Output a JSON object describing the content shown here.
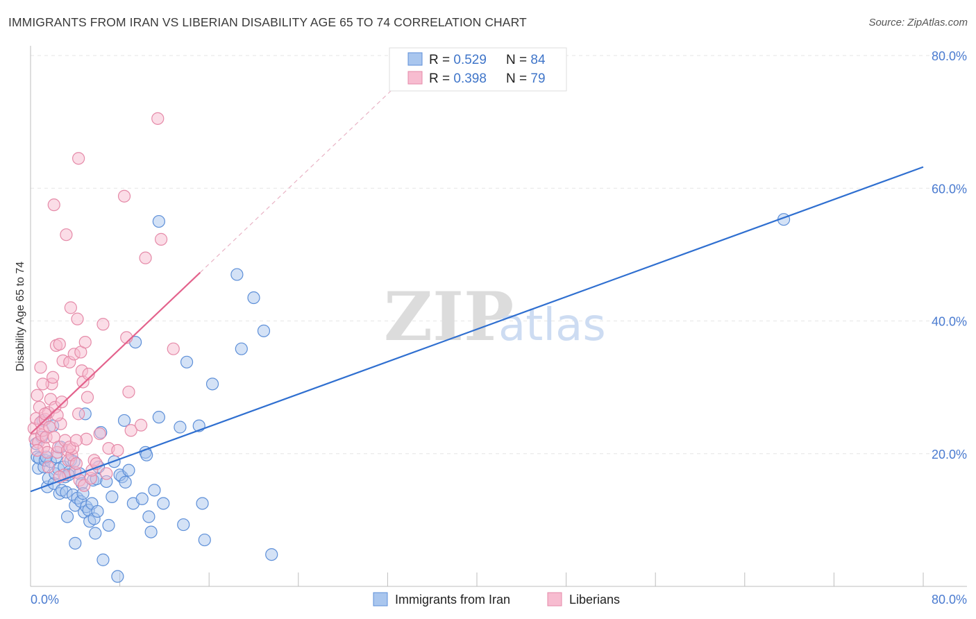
{
  "title": "IMMIGRANTS FROM IRAN VS LIBERIAN DISABILITY AGE 65 TO 74 CORRELATION CHART",
  "source": "Source: ZipAtlas.com",
  "watermark": {
    "part1": "ZIP",
    "part2": "atlas"
  },
  "legend_top": [
    {
      "r_label": "R = ",
      "r_value": "0.529",
      "n_label": "N = ",
      "n_value": "84"
    },
    {
      "r_label": "R = ",
      "r_value": "0.398",
      "n_label": "N = ",
      "n_value": "79"
    }
  ],
  "colors": {
    "blue_fill": "#a9c6ee",
    "blue_stroke": "#5d8fd8",
    "blue_line": "#2f6fd0",
    "pink_fill": "#f7bcd0",
    "pink_stroke": "#e58aa8",
    "pink_line": "#e3628c",
    "grid": "#e6e6e6",
    "axis": "#bdbdbd"
  },
  "chart_data": {
    "type": "scatter",
    "title": "IMMIGRANTS FROM IRAN VS LIBERIAN DISABILITY AGE 65 TO 74 CORRELATION CHART",
    "xlabel": "",
    "ylabel": "Disability Age 65 to 74",
    "xlim": [
      0,
      80
    ],
    "ylim": [
      0,
      80
    ],
    "x_tick_labels": [
      "0.0%",
      "80.0%"
    ],
    "y_tick_labels": [
      "20.0%",
      "40.0%",
      "60.0%",
      "80.0%"
    ],
    "y_ticks": [
      20,
      40,
      60,
      80
    ],
    "series": [
      {
        "name": "Immigrants from Iran",
        "color": "blue",
        "trend": {
          "x0": 0,
          "y0": 14.3,
          "x1": 80,
          "y1": 63.2,
          "dashed_until": null
        },
        "points": [
          [
            0.5,
            21.5
          ],
          [
            0.6,
            19.5
          ],
          [
            0.7,
            17.8
          ],
          [
            0.8,
            19.3
          ],
          [
            1.0,
            22.5
          ],
          [
            1.1,
            25.0
          ],
          [
            1.2,
            18.0
          ],
          [
            1.3,
            19.0
          ],
          [
            1.5,
            15.0
          ],
          [
            1.6,
            16.3
          ],
          [
            1.8,
            18.8
          ],
          [
            2.0,
            24.2
          ],
          [
            2.1,
            15.5
          ],
          [
            2.2,
            17.0
          ],
          [
            2.3,
            19.5
          ],
          [
            2.5,
            17.7
          ],
          [
            2.6,
            14.0
          ],
          [
            2.8,
            14.5
          ],
          [
            3.0,
            18.0
          ],
          [
            3.1,
            16.5
          ],
          [
            3.2,
            14.2
          ],
          [
            3.3,
            10.5
          ],
          [
            3.5,
            17.3
          ],
          [
            3.6,
            19.0
          ],
          [
            3.8,
            13.8
          ],
          [
            3.9,
            18.8
          ],
          [
            4.0,
            12.2
          ],
          [
            4.2,
            13.3
          ],
          [
            4.4,
            17.0
          ],
          [
            4.5,
            12.8
          ],
          [
            4.6,
            15.5
          ],
          [
            4.8,
            11.2
          ],
          [
            4.9,
            26.0
          ],
          [
            5.0,
            12.0
          ],
          [
            5.2,
            11.5
          ],
          [
            5.3,
            9.8
          ],
          [
            5.5,
            12.5
          ],
          [
            5.6,
            16.0
          ],
          [
            5.7,
            10.2
          ],
          [
            5.8,
            8.0
          ],
          [
            5.9,
            16.2
          ],
          [
            6.0,
            11.3
          ],
          [
            6.1,
            18.0
          ],
          [
            6.3,
            23.2
          ],
          [
            6.5,
            4.0
          ],
          [
            7.0,
            9.2
          ],
          [
            7.3,
            13.5
          ],
          [
            7.5,
            18.8
          ],
          [
            7.8,
            1.5
          ],
          [
            8.2,
            16.5
          ],
          [
            8.0,
            16.8
          ],
          [
            8.5,
            15.7
          ],
          [
            8.8,
            17.5
          ],
          [
            8.4,
            25.0
          ],
          [
            9.2,
            12.5
          ],
          [
            10.0,
            13.2
          ],
          [
            10.3,
            20.2
          ],
          [
            10.4,
            19.8
          ],
          [
            10.6,
            10.5
          ],
          [
            10.8,
            8.2
          ],
          [
            9.4,
            36.8
          ],
          [
            11.1,
            14.5
          ],
          [
            11.5,
            25.5
          ],
          [
            11.9,
            12.5
          ],
          [
            11.5,
            55.0
          ],
          [
            13.4,
            24.0
          ],
          [
            13.7,
            9.3
          ],
          [
            14.0,
            33.8
          ],
          [
            15.1,
            24.2
          ],
          [
            15.4,
            12.5
          ],
          [
            15.6,
            7.0
          ],
          [
            16.3,
            30.5
          ],
          [
            18.5,
            47.0
          ],
          [
            18.9,
            35.8
          ],
          [
            20.0,
            43.5
          ],
          [
            20.9,
            38.5
          ],
          [
            21.6,
            4.8
          ],
          [
            67.5,
            55.3
          ],
          [
            4.0,
            6.5
          ],
          [
            2.7,
            21.0
          ],
          [
            1.4,
            19.5
          ],
          [
            3.4,
            16.8
          ],
          [
            6.8,
            15.8
          ],
          [
            4.7,
            14.0
          ]
        ]
      },
      {
        "name": "Liberians",
        "color": "pink",
        "trend": {
          "x0": 0,
          "y0": 23.0,
          "x1": 15.2,
          "y1": 47.3,
          "dashed_x1": 32.5,
          "dashed_y1": 75.0
        },
        "points": [
          [
            0.3,
            23.8
          ],
          [
            0.4,
            22.2
          ],
          [
            0.5,
            25.3
          ],
          [
            0.6,
            28.8
          ],
          [
            0.7,
            21.7
          ],
          [
            0.8,
            27.0
          ],
          [
            0.9,
            24.7
          ],
          [
            1.0,
            22.8
          ],
          [
            1.1,
            23.5
          ],
          [
            1.2,
            21.0
          ],
          [
            1.3,
            25.2
          ],
          [
            1.4,
            22.5
          ],
          [
            1.5,
            20.2
          ],
          [
            1.6,
            26.2
          ],
          [
            1.7,
            24.0
          ],
          [
            1.8,
            28.2
          ],
          [
            1.9,
            30.5
          ],
          [
            2.0,
            31.5
          ],
          [
            2.1,
            22.5
          ],
          [
            2.2,
            27.0
          ],
          [
            2.3,
            36.3
          ],
          [
            2.4,
            20.2
          ],
          [
            2.5,
            21.0
          ],
          [
            2.6,
            36.5
          ],
          [
            2.7,
            24.5
          ],
          [
            2.8,
            27.8
          ],
          [
            2.9,
            34.0
          ],
          [
            3.0,
            16.8
          ],
          [
            3.1,
            22.0
          ],
          [
            3.2,
            53.0
          ],
          [
            3.3,
            20.5
          ],
          [
            3.4,
            19.0
          ],
          [
            3.5,
            33.8
          ],
          [
            3.6,
            42.0
          ],
          [
            3.7,
            19.8
          ],
          [
            3.8,
            20.8
          ],
          [
            3.9,
            35.0
          ],
          [
            4.0,
            17.2
          ],
          [
            4.1,
            18.5
          ],
          [
            4.2,
            40.3
          ],
          [
            4.3,
            26.0
          ],
          [
            4.4,
            16.0
          ],
          [
            4.5,
            35.3
          ],
          [
            4.6,
            32.5
          ],
          [
            4.7,
            30.8
          ],
          [
            4.8,
            15.2
          ],
          [
            4.9,
            36.8
          ],
          [
            5.0,
            22.2
          ],
          [
            5.1,
            28.5
          ],
          [
            5.2,
            32.0
          ],
          [
            5.4,
            16.3
          ],
          [
            5.5,
            17.5
          ],
          [
            5.7,
            19.0
          ],
          [
            5.9,
            18.5
          ],
          [
            6.2,
            23.0
          ],
          [
            6.5,
            39.5
          ],
          [
            6.8,
            17.0
          ],
          [
            7.0,
            20.8
          ],
          [
            7.8,
            20.5
          ],
          [
            8.4,
            58.8
          ],
          [
            8.6,
            37.5
          ],
          [
            8.8,
            29.3
          ],
          [
            9.0,
            23.5
          ],
          [
            9.9,
            24.3
          ],
          [
            10.3,
            49.5
          ],
          [
            11.7,
            52.3
          ],
          [
            12.8,
            35.8
          ],
          [
            2.1,
            57.5
          ],
          [
            4.3,
            64.5
          ],
          [
            11.4,
            70.5
          ],
          [
            1.1,
            30.5
          ],
          [
            0.9,
            33.0
          ],
          [
            1.6,
            18.0
          ],
          [
            2.6,
            16.5
          ],
          [
            0.6,
            20.5
          ],
          [
            1.3,
            26.0
          ],
          [
            2.4,
            25.8
          ],
          [
            3.5,
            21.0
          ],
          [
            4.1,
            22.0
          ]
        ]
      }
    ]
  },
  "bottom_legend": [
    {
      "label": "Immigrants from Iran"
    },
    {
      "label": "Liberians"
    }
  ]
}
